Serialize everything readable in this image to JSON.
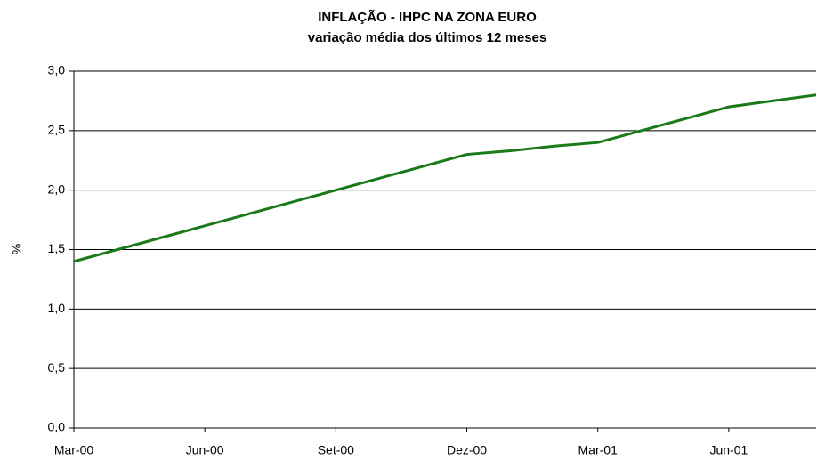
{
  "chart_data": {
    "type": "line",
    "title": "INFLAÇÃO - IHPC NA ZONA EURO",
    "subtitle": "variação média dos últimos 12 meses",
    "y_label": "%",
    "categories": [
      "Mar-00",
      null,
      null,
      "Jun-00",
      null,
      null,
      "Set-00",
      null,
      null,
      "Dez-00",
      null,
      null,
      "Mar-01",
      null,
      null,
      "Jun-01",
      null,
      null
    ],
    "series": [
      {
        "name": "IHPC",
        "color": "#1a7a1a",
        "values": [
          1.4,
          1.5,
          1.6,
          1.7,
          1.8,
          1.9,
          2.0,
          2.1,
          2.2,
          2.3,
          2.33,
          2.37,
          2.4,
          2.5,
          2.6,
          2.7,
          2.75,
          2.8
        ]
      }
    ],
    "ylim": [
      0,
      3
    ],
    "yticks": [
      {
        "value": 0,
        "label": "0,0"
      },
      {
        "value": 0.5,
        "label": "0,5"
      },
      {
        "value": 1,
        "label": "1,0"
      },
      {
        "value": 1.5,
        "label": "1,5"
      },
      {
        "value": 2,
        "label": "2,0"
      },
      {
        "value": 2.5,
        "label": "2,5"
      },
      {
        "value": 3,
        "label": "3,0"
      }
    ],
    "grid": true
  }
}
